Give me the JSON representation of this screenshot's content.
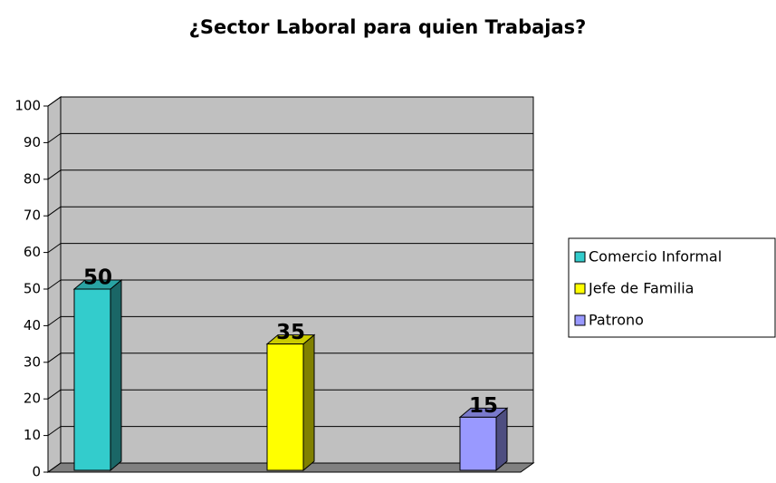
{
  "chart_data": {
    "type": "bar",
    "title": "¿Sector Laboral para quien Trabajas?",
    "categories": [
      null
    ],
    "series": [
      {
        "name": "Comercio Informal",
        "color": "#33cccc",
        "values": [
          50
        ]
      },
      {
        "name": "Jefe de Familia",
        "color": "#ffff00",
        "values": [
          35
        ]
      },
      {
        "name": "Patrono",
        "color": "#9999ff",
        "values": [
          15
        ]
      }
    ],
    "ylim": [
      0,
      100
    ],
    "yticks": [
      0,
      10,
      20,
      30,
      40,
      50,
      60,
      70,
      80,
      90,
      100
    ],
    "grid": true,
    "legend": "right"
  }
}
